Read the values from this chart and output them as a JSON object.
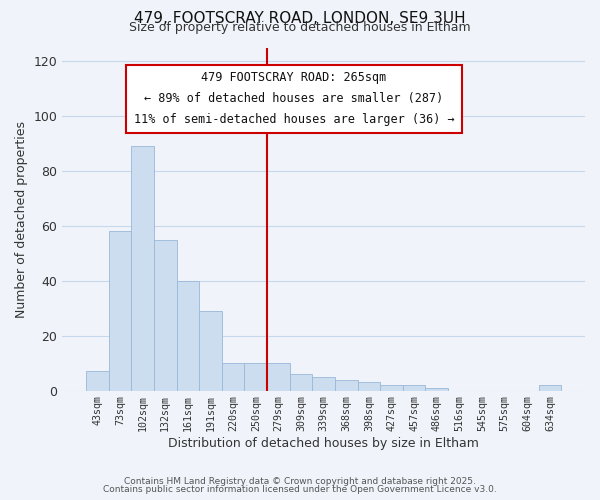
{
  "title": "479, FOOTSCRAY ROAD, LONDON, SE9 3UH",
  "subtitle": "Size of property relative to detached houses in Eltham",
  "xlabel": "Distribution of detached houses by size in Eltham",
  "ylabel": "Number of detached properties",
  "bar_labels": [
    "43sqm",
    "73sqm",
    "102sqm",
    "132sqm",
    "161sqm",
    "191sqm",
    "220sqm",
    "250sqm",
    "279sqm",
    "309sqm",
    "339sqm",
    "368sqm",
    "398sqm",
    "427sqm",
    "457sqm",
    "486sqm",
    "516sqm",
    "545sqm",
    "575sqm",
    "604sqm",
    "634sqm"
  ],
  "bar_values": [
    7,
    58,
    89,
    55,
    40,
    29,
    10,
    10,
    10,
    6,
    5,
    4,
    3,
    2,
    2,
    1,
    0,
    0,
    0,
    0,
    2
  ],
  "bar_color": "#ccddf0",
  "bar_edge_color": "#9ab8d8",
  "vline_x": 7.5,
  "vline_color": "#cc0000",
  "ylim": [
    0,
    125
  ],
  "yticks": [
    0,
    20,
    40,
    60,
    80,
    100,
    120
  ],
  "grid_color": "#c8d8ec",
  "bg_color": "#f0f4fa",
  "footer1": "Contains HM Land Registry data © Crown copyright and database right 2025.",
  "footer2": "Contains public sector information licensed under the Open Government Licence v3.0.",
  "ann_title": "479 FOOTSCRAY ROAD: 265sqm",
  "ann_line1": "← 89% of detached houses are smaller (287)",
  "ann_line2": "11% of semi-detached houses are larger (36) →"
}
